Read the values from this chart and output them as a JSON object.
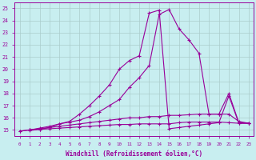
{
  "title": "",
  "xlabel": "Windchill (Refroidissement éolien,°C)",
  "ylabel": "",
  "xlim": [
    -0.5,
    23.5
  ],
  "ylim": [
    14.5,
    25.5
  ],
  "xticks": [
    0,
    1,
    2,
    3,
    4,
    5,
    6,
    7,
    8,
    9,
    10,
    11,
    12,
    13,
    14,
    15,
    16,
    17,
    18,
    19,
    20,
    21,
    22,
    23
  ],
  "yticks": [
    15,
    16,
    17,
    18,
    19,
    20,
    21,
    22,
    23,
    24,
    25
  ],
  "bg_color": "#c8eef0",
  "line_color": "#990099",
  "grid_color": "#aacccc",
  "series": [
    {
      "x": [
        0,
        1,
        2,
        3,
        4,
        5,
        6,
        7,
        8,
        9,
        10,
        11,
        12,
        13,
        14,
        15,
        16,
        17,
        18,
        19,
        20,
        21,
        22,
        23
      ],
      "y": [
        14.9,
        15.0,
        15.05,
        15.1,
        15.15,
        15.2,
        15.25,
        15.3,
        15.35,
        15.4,
        15.45,
        15.45,
        15.5,
        15.5,
        15.5,
        15.5,
        15.6,
        15.65,
        15.65,
        15.65,
        15.65,
        15.6,
        15.55,
        15.55
      ]
    },
    {
      "x": [
        0,
        1,
        2,
        3,
        4,
        5,
        6,
        7,
        8,
        9,
        10,
        11,
        12,
        13,
        14,
        15,
        16,
        17,
        18,
        19,
        20,
        21,
        22,
        23
      ],
      "y": [
        14.9,
        15.0,
        15.1,
        15.2,
        15.3,
        15.4,
        15.5,
        15.6,
        15.7,
        15.8,
        15.9,
        16.0,
        16.0,
        16.1,
        16.1,
        16.2,
        16.2,
        16.25,
        16.3,
        16.3,
        16.3,
        16.3,
        15.7,
        15.55
      ]
    },
    {
      "x": [
        1,
        2,
        3,
        4,
        5,
        6,
        7,
        8,
        9,
        10,
        11,
        12,
        13,
        14,
        15,
        16,
        17,
        18,
        19,
        20,
        21,
        22,
        23
      ],
      "y": [
        15.0,
        15.15,
        15.3,
        15.5,
        15.65,
        15.8,
        16.1,
        16.5,
        17.0,
        17.5,
        18.5,
        19.3,
        20.3,
        24.5,
        24.9,
        23.3,
        22.4,
        21.3,
        16.3,
        16.3,
        18.0,
        15.6,
        15.55
      ]
    },
    {
      "x": [
        1,
        2,
        3,
        4,
        5,
        6,
        7,
        8,
        9,
        10,
        11,
        12,
        13,
        14,
        15,
        16,
        17,
        18,
        19,
        20,
        21,
        22,
        23
      ],
      "y": [
        14.95,
        15.05,
        15.2,
        15.5,
        15.7,
        16.3,
        17.0,
        17.8,
        18.7,
        20.0,
        20.7,
        21.1,
        24.6,
        24.85,
        15.1,
        15.2,
        15.3,
        15.4,
        15.5,
        15.6,
        17.8,
        15.55,
        15.55
      ]
    }
  ]
}
